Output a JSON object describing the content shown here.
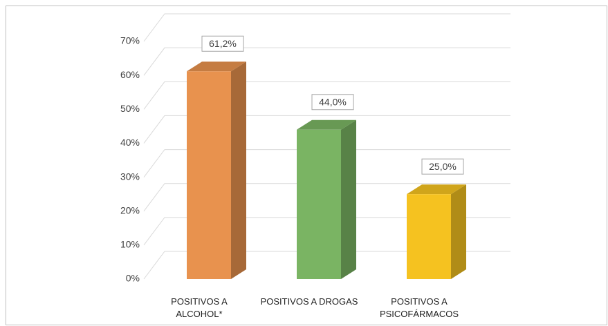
{
  "chart_data": {
    "type": "bar3d",
    "categories": [
      "POSITIVOS A ALCOHOL*",
      "POSITIVOS A DROGAS",
      "POSITIVOS A PSICOFÁRMACOS"
    ],
    "values": [
      61.2,
      44.0,
      25.0
    ],
    "value_labels": [
      "61,2%",
      "44,0%",
      "25,0%"
    ],
    "colors": [
      "#e8924e",
      "#7ab463",
      "#f5c220"
    ],
    "ylim": [
      0,
      70
    ],
    "yticks": [
      {
        "value": 0,
        "label": "0%"
      },
      {
        "value": 10,
        "label": "10%"
      },
      {
        "value": 20,
        "label": "20%"
      },
      {
        "value": 30,
        "label": "30%"
      },
      {
        "value": 40,
        "label": "40%"
      },
      {
        "value": 50,
        "label": "50%"
      },
      {
        "value": 60,
        "label": "60%"
      },
      {
        "value": 70,
        "label": "70%"
      }
    ],
    "grid": true
  }
}
